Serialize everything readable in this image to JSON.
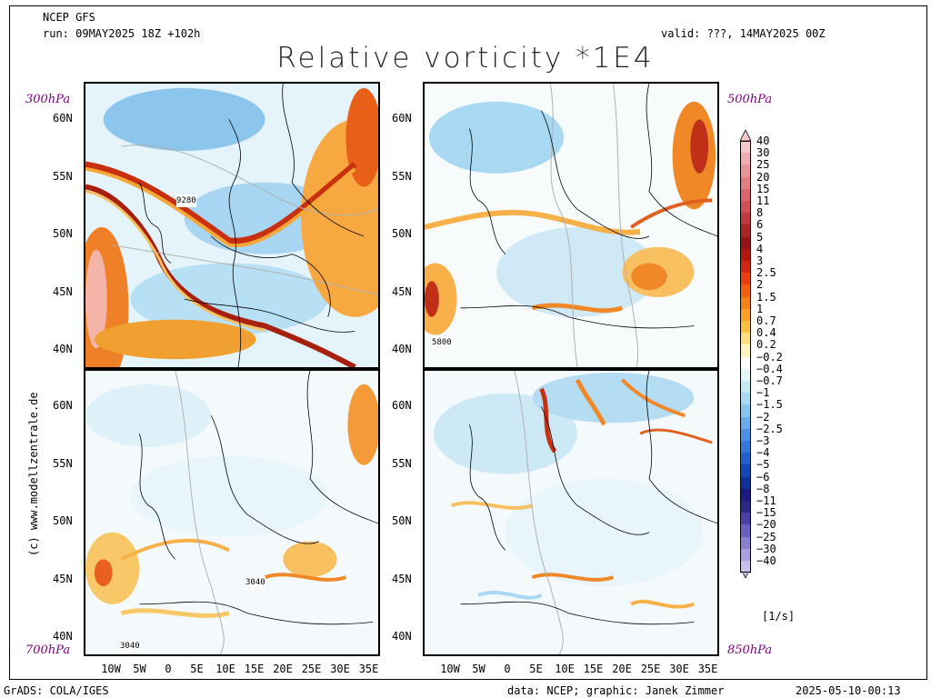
{
  "header": {
    "model": "NCEP GFS",
    "run": "run: 09MAY2025 18Z +102h",
    "valid": "valid: ???, 14MAY2025 00Z",
    "title": "Relative vorticity *1E4"
  },
  "levels": {
    "top_left": "300hPa",
    "top_right": "500hPa",
    "bottom_left": "700hPa",
    "bottom_right": "850hPa"
  },
  "contour_labels": {
    "p300": "9280",
    "p500": "5800",
    "p700a": "3040",
    "p700b": "3040"
  },
  "lat_labels": [
    "60N",
    "55N",
    "50N",
    "45N",
    "40N"
  ],
  "lon_labels": [
    "10W",
    "5W",
    "0",
    "5E",
    "10E",
    "15E",
    "20E",
    "25E",
    "30E",
    "35E"
  ],
  "colorbar": {
    "labels": [
      "40",
      "30",
      "25",
      "20",
      "15",
      "11",
      "8",
      "6",
      "5",
      "4",
      "3",
      "2.5",
      "2",
      "1.5",
      "1",
      "0.7",
      "0.4",
      "0.2",
      "−0.2",
      "−0.4",
      "−0.7",
      "−1",
      "−1.5",
      "−2",
      "−2.5",
      "−3",
      "−4",
      "−5",
      "−6",
      "−8",
      "−11",
      "−15",
      "−20",
      "−25",
      "−30",
      "−40"
    ],
    "colors": [
      "#f6c8cc",
      "#f0aeb4",
      "#e8969c",
      "#e07e84",
      "#d8666c",
      "#cc5056",
      "#be3a40",
      "#aa2428",
      "#961418",
      "#b01810",
      "#d02810",
      "#e84010",
      "#f06010",
      "#f48018",
      "#f8a028",
      "#fcc040",
      "#fce080",
      "#fef4c0",
      "#ffffff",
      "#e4f6fa",
      "#c4ecf6",
      "#a8d8f4",
      "#88c4f0",
      "#68aaec",
      "#4c90e4",
      "#3478dc",
      "#2060d0",
      "#1448b8",
      "#10309a",
      "#181a80",
      "#2c2888",
      "#4a40a8",
      "#6a60c0",
      "#8a80d0",
      "#aaa0e0",
      "#c8c0ec"
    ],
    "unit": "[1/s]"
  },
  "footer": {
    "grads": "GrADS: COLA/IGES",
    "source": "data: NCEP; graphic: Janek Zimmer",
    "stamp": "2025-05-10-00:13",
    "credit": "(c) www.modellzentrale.de"
  }
}
